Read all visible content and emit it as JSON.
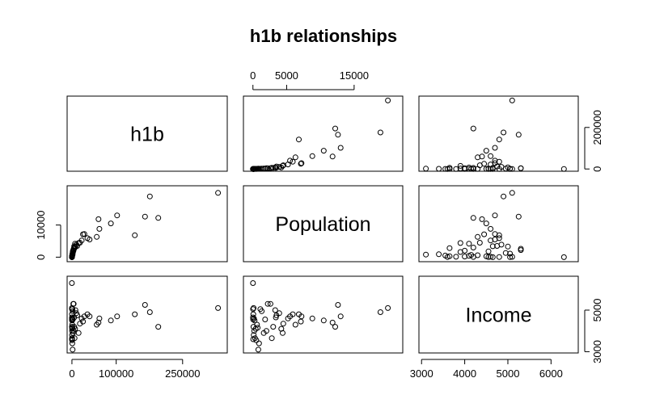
{
  "chart_data": {
    "type": "scatter",
    "title": "h1b relationships",
    "variables": [
      "h1b",
      "Population",
      "Income"
    ],
    "axes": {
      "h1b": {
        "range": [
          0,
          340000
        ],
        "ticks": [
          0,
          100000,
          250000
        ],
        "tick_labels": [
          "0",
          "100000",
          "250000"
        ],
        "right_ticks": [
          0,
          200000
        ],
        "right_tick_labels": [
          "0",
          "200000"
        ]
      },
      "Population": {
        "range": [
          -700,
          21500
        ],
        "ticks": [
          0,
          5000,
          15000
        ],
        "tick_labels": [
          "0",
          "5000",
          "15000"
        ],
        "left_ticks": [
          0,
          10000
        ],
        "left_tick_labels": [
          "0",
          "10000"
        ]
      },
      "Income": {
        "range": [
          3050,
          6520
        ],
        "ticks": [
          3000,
          4000,
          5000,
          6000
        ],
        "tick_labels": [
          "3000",
          "4000",
          "5000",
          "6000"
        ],
        "right_ticks": [
          3000,
          5000
        ],
        "right_tick_labels": [
          "3000",
          "5000"
        ]
      }
    },
    "grid": false,
    "legend": "none",
    "marker": "open-circle",
    "data": {
      "h1b": [
        330000,
        176000,
        165000,
        195000,
        142000,
        102000,
        88000,
        60000,
        62000,
        56000,
        40000,
        35000,
        28000,
        25000,
        22000,
        18000,
        15000,
        12000,
        10000,
        8000,
        7000,
        6000,
        5000,
        5000,
        4000,
        3500,
        3000,
        2500,
        2000,
        1800,
        1500,
        1200,
        1000,
        800,
        600,
        500,
        400,
        300,
        300,
        250,
        200,
        150,
        120,
        100,
        80,
        60,
        40,
        30,
        20,
        10
      ],
      "Population": [
        20000,
        18900,
        12600,
        12200,
        6800,
        13000,
        10500,
        11800,
        8800,
        6300,
        5500,
        5900,
        7200,
        7100,
        5200,
        4500,
        4400,
        3500,
        3900,
        3300,
        4200,
        2800,
        3400,
        3000,
        2600,
        2000,
        2200,
        1600,
        1800,
        1300,
        800,
        1100,
        700,
        900,
        600,
        500,
        400,
        300,
        250,
        200,
        150,
        120,
        100,
        80,
        60,
        40,
        30,
        20,
        10,
        5
      ],
      "Income": [
        5100,
        4900,
        5250,
        4200,
        4800,
        4700,
        4500,
        4400,
        4600,
        4300,
        4700,
        4800,
        4700,
        4450,
        4600,
        4350,
        3900,
        4750,
        4850,
        5000,
        4100,
        3650,
        4650,
        4200,
        5300,
        4000,
        5300,
        3900,
        4550,
        4950,
        3100,
        5050,
        4150,
        3400,
        4300,
        3550,
        4100,
        3650,
        4500,
        4000,
        4600,
        3800,
        5100,
        4200,
        4800,
        3600,
        4550,
        5050,
        4650,
        6300
      ]
    }
  }
}
